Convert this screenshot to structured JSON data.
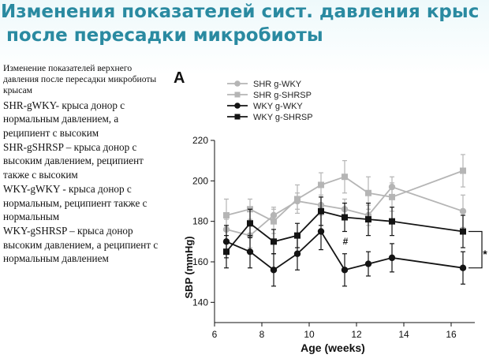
{
  "title_lines": [
    "Изменения показателей сист. давления  крыс",
    "после пересадки микробиоты"
  ],
  "description": {
    "intro": "Изменение показателей верхнего давления после пересадки микробиоты крысам",
    "items": [
      "SHR-gWKY- крыса донор с нормальным давлением, а реципиент с высоким",
      "SHR-gSHRSP – крыса донор с высоким  давлением, реципиент также с высоким",
      "WKY-gWKY -  крыса донор с нормальным, реципиент также с нормальным",
      "WKY-gSHRSP – крыса донор высоким давлением, а реципиент с нормальным давлением"
    ]
  },
  "colors": {
    "title": "#2a8aa1",
    "shr": "#b5b5b5",
    "wky": "#141414"
  },
  "chart_data": {
    "type": "line",
    "panel_label": "A",
    "xlabel": "Age (weeks)",
    "ylabel": "SBP (mmHg)",
    "xlim": [
      6,
      17
    ],
    "ylim": [
      130,
      220
    ],
    "xticks": [
      6,
      8,
      10,
      12,
      14,
      16
    ],
    "yticks": [
      140,
      160,
      180,
      200,
      220
    ],
    "legend_position": "top-left",
    "annotations": [
      "#",
      "*"
    ],
    "series": [
      {
        "name": "SHR g-WKY",
        "marker": "circle",
        "color": "gray",
        "x": [
          6.5,
          7.5,
          8.5,
          9.5,
          10.5,
          11.5,
          12.5,
          13.5,
          16.5
        ],
        "y": [
          176,
          173,
          183,
          190,
          188,
          186,
          183,
          197,
          185
        ],
        "err": [
          5,
          6,
          4,
          4,
          5,
          5,
          5,
          5,
          8
        ]
      },
      {
        "name": "SHR g-SHRSP",
        "marker": "square",
        "color": "gray",
        "x": [
          6.5,
          7.5,
          8.5,
          9.5,
          10.5,
          11.5,
          12.5,
          13.5,
          16.5
        ],
        "y": [
          183,
          186,
          180,
          191,
          198,
          202,
          194,
          192,
          205
        ],
        "err": [
          8,
          5,
          6,
          7,
          6,
          8,
          8,
          7,
          8
        ]
      },
      {
        "name": "WKY g-WKY",
        "marker": "circle",
        "color": "black",
        "x": [
          6.5,
          7.5,
          8.5,
          9.5,
          10.5,
          11.5,
          12.5,
          13.5,
          16.5
        ],
        "y": [
          170,
          165,
          156,
          164,
          175,
          156,
          159,
          162,
          157
        ],
        "err": [
          8,
          8,
          8,
          8,
          9,
          8,
          6,
          7,
          8
        ]
      },
      {
        "name": "WKY g-SHRSP",
        "marker": "square",
        "color": "black",
        "x": [
          6.5,
          7.5,
          8.5,
          9.5,
          10.5,
          11.5,
          12.5,
          13.5,
          16.5
        ],
        "y": [
          165,
          179,
          170,
          173,
          185,
          182,
          181,
          180,
          175
        ],
        "err": [
          8,
          7,
          6,
          6,
          7,
          7,
          8,
          7,
          8
        ]
      }
    ]
  }
}
